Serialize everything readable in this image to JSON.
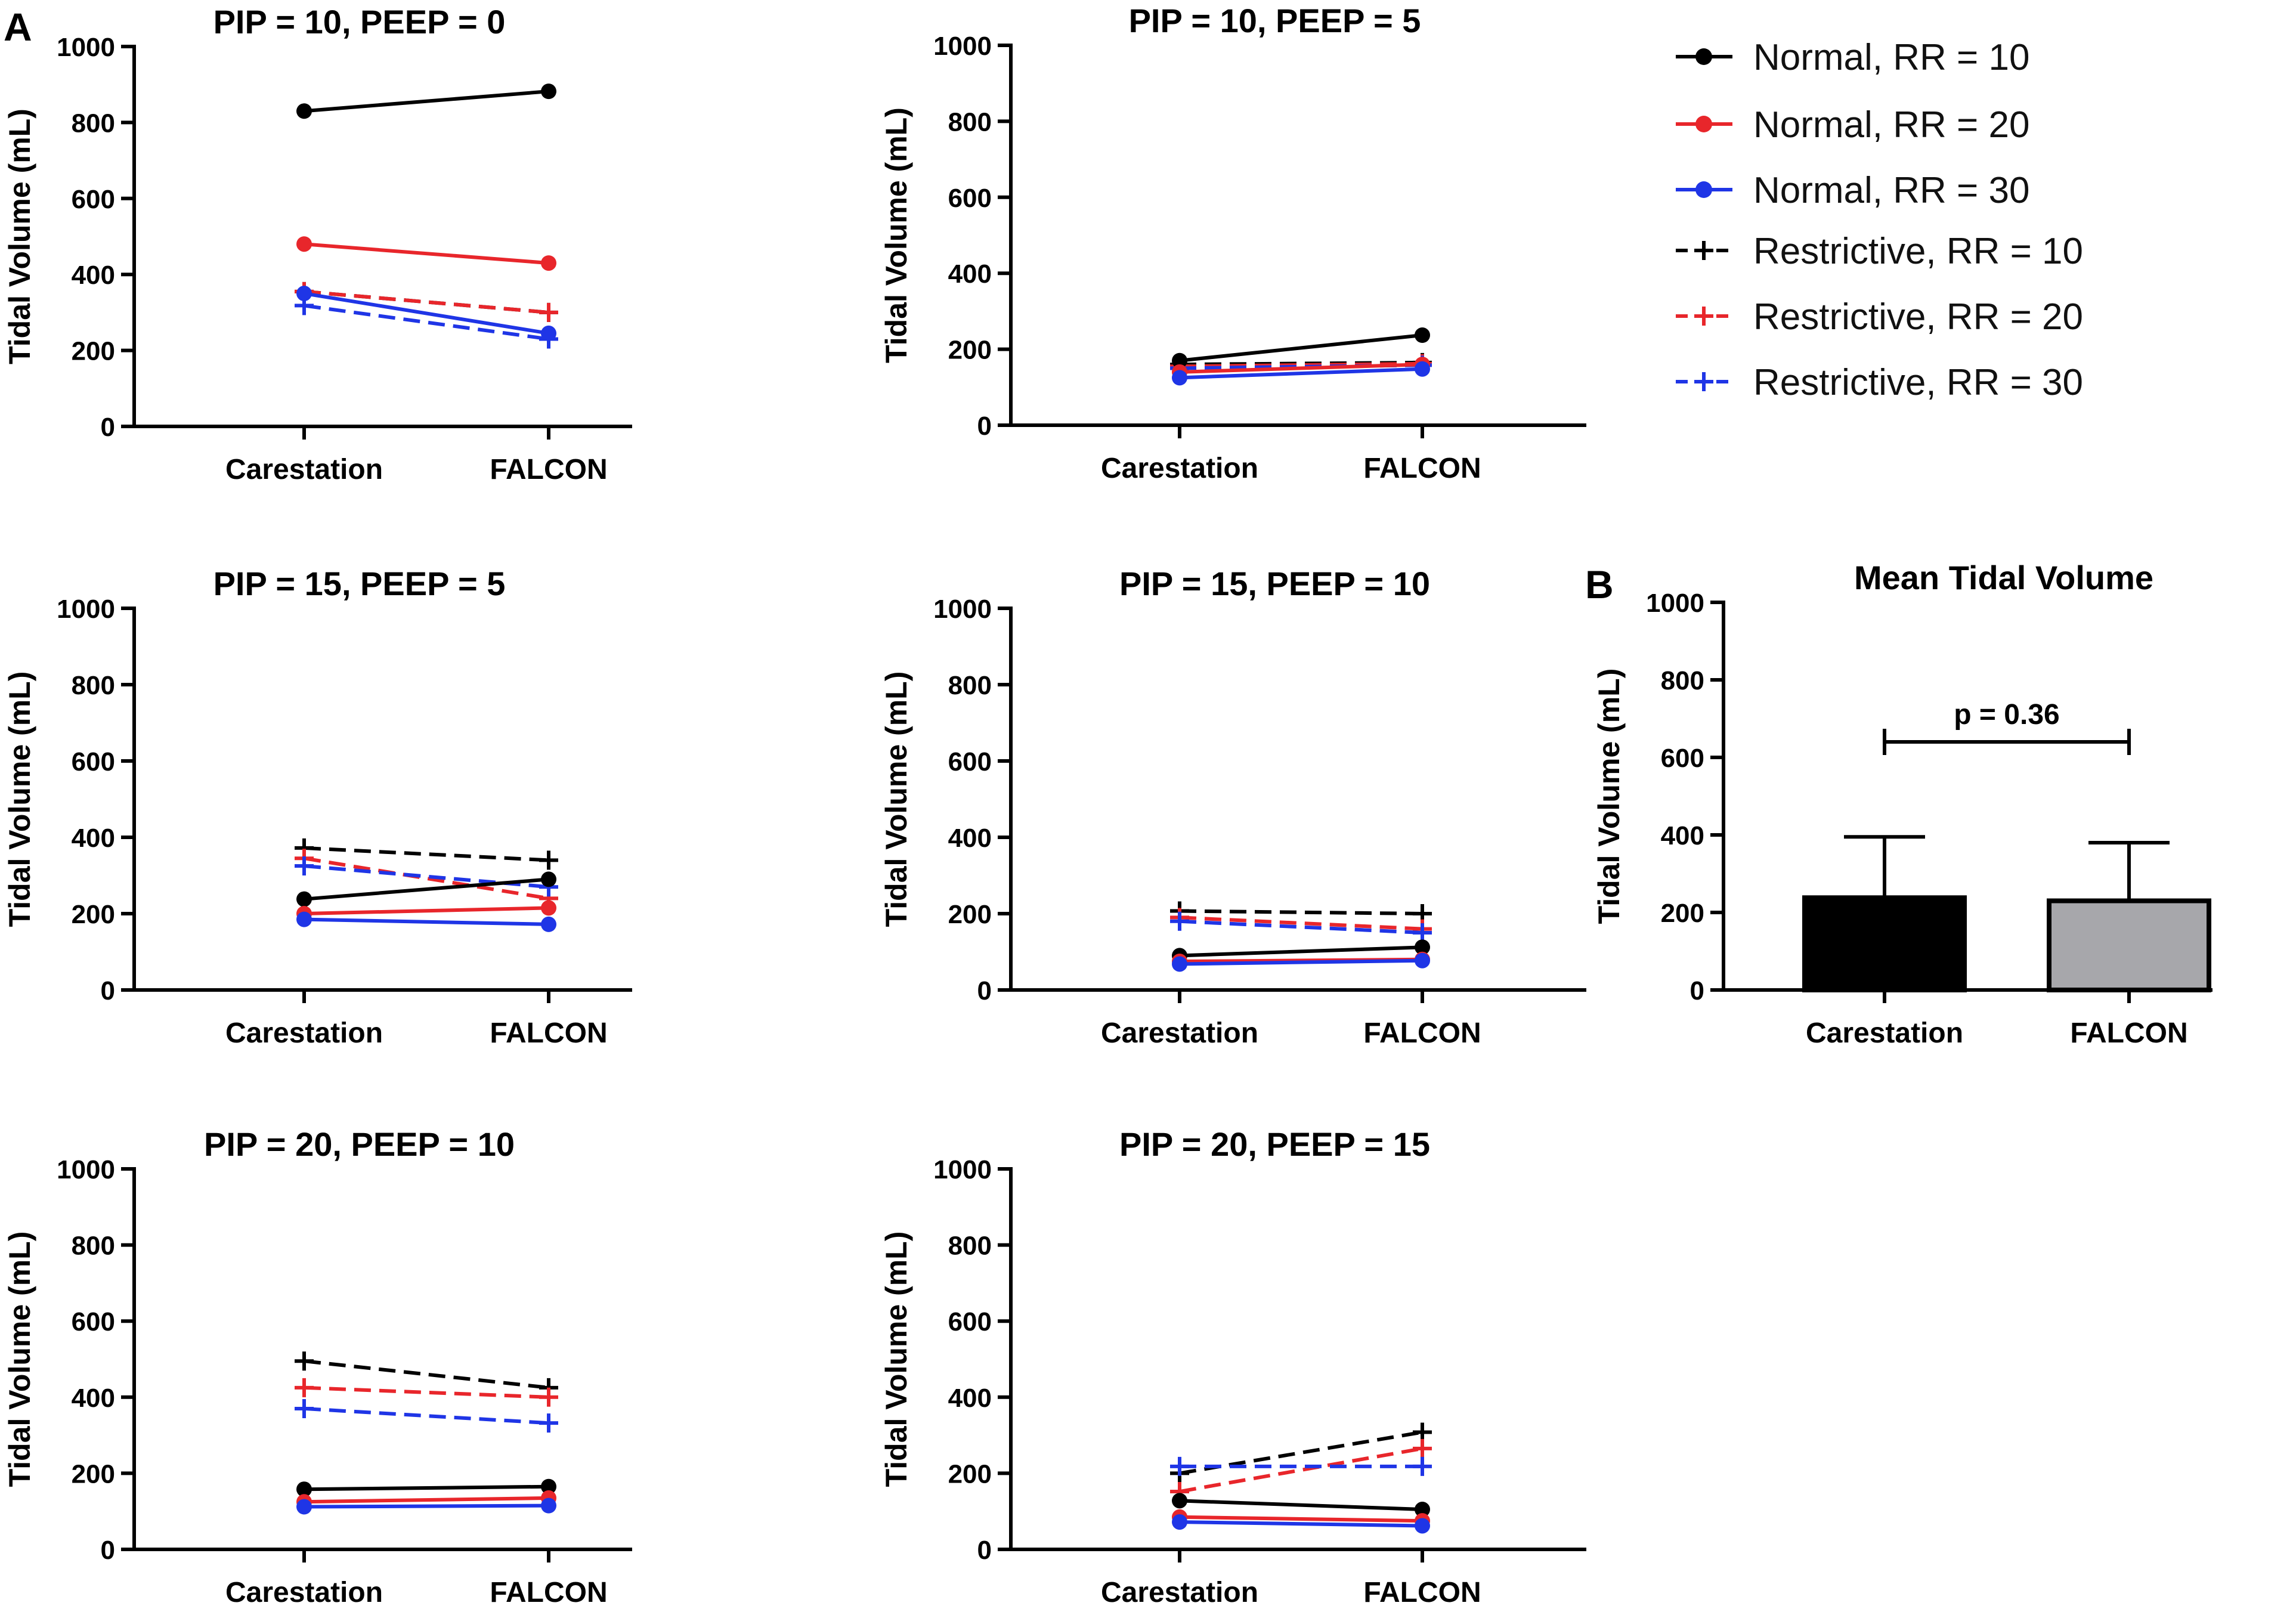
{
  "figure": {
    "panel_a_label": "A",
    "panel_b_label": "B"
  },
  "colors": {
    "normal_rr10": "#000000",
    "normal_rr20": "#e8262b",
    "normal_rr30": "#1f35e6",
    "bar_carestation": "#000000",
    "bar_falcon": "#a7a7ab"
  },
  "legend": [
    {
      "label": "Normal, RR = 10",
      "style": "solid-dot",
      "color": "#000000"
    },
    {
      "label": "Normal, RR = 20",
      "style": "solid-dot",
      "color": "#e8262b"
    },
    {
      "label": "Normal, RR = 30",
      "style": "solid-dot",
      "color": "#1f35e6"
    },
    {
      "label": "Restrictive, RR = 10",
      "style": "dashed-plus",
      "color": "#000000"
    },
    {
      "label": "Restrictive, RR = 20",
      "style": "dashed-plus",
      "color": "#e8262b"
    },
    {
      "label": "Restrictive, RR = 30",
      "style": "dashed-plus",
      "color": "#1f35e6"
    }
  ],
  "chart_data": [
    {
      "type": "line",
      "title": "PIP = 10, PEEP = 0",
      "categories": [
        "Carestation",
        "FALCON"
      ],
      "ylabel": "Tidal Volume (mL)",
      "ylim": [
        0,
        1000
      ],
      "yticks": [
        0,
        200,
        400,
        600,
        800,
        1000
      ],
      "series": [
        {
          "name": "Normal, RR = 10",
          "values": [
            830,
            882
          ]
        },
        {
          "name": "Normal, RR = 20",
          "values": [
            480,
            430
          ]
        },
        {
          "name": "Normal, RR = 30",
          "values": [
            350,
            245
          ]
        },
        {
          "name": "Restrictive, RR = 10",
          "values": [
            355,
            300
          ]
        },
        {
          "name": "Restrictive, RR = 20",
          "values": [
            355,
            300
          ]
        },
        {
          "name": "Restrictive, RR = 30",
          "values": [
            318,
            230
          ]
        }
      ]
    },
    {
      "type": "line",
      "title": "PIP = 10, PEEP = 5",
      "categories": [
        "Carestation",
        "FALCON"
      ],
      "ylabel": "Tidal Volume (mL)",
      "ylim": [
        0,
        1000
      ],
      "yticks": [
        0,
        200,
        400,
        600,
        800,
        1000
      ],
      "series": [
        {
          "name": "Normal, RR = 10",
          "values": [
            170,
            237
          ]
        },
        {
          "name": "Normal, RR = 20",
          "values": [
            140,
            160
          ]
        },
        {
          "name": "Normal, RR = 30",
          "values": [
            125,
            148
          ]
        },
        {
          "name": "Restrictive, RR = 10",
          "values": [
            160,
            165
          ]
        },
        {
          "name": "Restrictive, RR = 20",
          "values": [
            155,
            162
          ]
        },
        {
          "name": "Restrictive, RR = 30",
          "values": [
            150,
            158
          ]
        }
      ]
    },
    {
      "type": "line",
      "title": "PIP = 15, PEEP = 5",
      "categories": [
        "Carestation",
        "FALCON"
      ],
      "ylabel": "Tidal Volume (mL)",
      "ylim": [
        0,
        1000
      ],
      "yticks": [
        0,
        200,
        400,
        600,
        800,
        1000
      ],
      "series": [
        {
          "name": "Normal, RR = 10",
          "values": [
            238,
            290
          ]
        },
        {
          "name": "Normal, RR = 20",
          "values": [
            200,
            215
          ]
        },
        {
          "name": "Normal, RR = 30",
          "values": [
            185,
            172
          ]
        },
        {
          "name": "Restrictive, RR = 10",
          "values": [
            372,
            340
          ]
        },
        {
          "name": "Restrictive, RR = 20",
          "values": [
            345,
            240
          ]
        },
        {
          "name": "Restrictive, RR = 30",
          "values": [
            325,
            270
          ]
        }
      ]
    },
    {
      "type": "line",
      "title": "PIP = 15, PEEP = 10",
      "categories": [
        "Carestation",
        "FALCON"
      ],
      "ylabel": "Tidal Volume (mL)",
      "ylim": [
        0,
        1000
      ],
      "yticks": [
        0,
        200,
        400,
        600,
        800,
        1000
      ],
      "series": [
        {
          "name": "Normal, RR = 10",
          "values": [
            90,
            112
          ]
        },
        {
          "name": "Normal, RR = 20",
          "values": [
            75,
            80
          ]
        },
        {
          "name": "Normal, RR = 30",
          "values": [
            68,
            77
          ]
        },
        {
          "name": "Restrictive, RR = 10",
          "values": [
            207,
            200
          ]
        },
        {
          "name": "Restrictive, RR = 20",
          "values": [
            190,
            160
          ]
        },
        {
          "name": "Restrictive, RR = 30",
          "values": [
            180,
            150
          ]
        }
      ]
    },
    {
      "type": "line",
      "title": "PIP = 20, PEEP = 10",
      "categories": [
        "Carestation",
        "FALCON"
      ],
      "ylabel": "Tidal Volume (mL)",
      "ylim": [
        0,
        1000
      ],
      "yticks": [
        0,
        200,
        400,
        600,
        800,
        1000
      ],
      "series": [
        {
          "name": "Normal, RR = 10",
          "values": [
            158,
            165
          ]
        },
        {
          "name": "Normal, RR = 20",
          "values": [
            125,
            135
          ]
        },
        {
          "name": "Normal, RR = 30",
          "values": [
            112,
            115
          ]
        },
        {
          "name": "Restrictive, RR = 10",
          "values": [
            495,
            425
          ]
        },
        {
          "name": "Restrictive, RR = 20",
          "values": [
            425,
            400
          ]
        },
        {
          "name": "Restrictive, RR = 30",
          "values": [
            370,
            332
          ]
        }
      ]
    },
    {
      "type": "line",
      "title": "PIP = 20, PEEP = 15",
      "categories": [
        "Carestation",
        "FALCON"
      ],
      "ylabel": "Tidal Volume (mL)",
      "ylim": [
        0,
        1000
      ],
      "yticks": [
        0,
        200,
        400,
        600,
        800,
        1000
      ],
      "series": [
        {
          "name": "Normal, RR = 10",
          "values": [
            128,
            105
          ]
        },
        {
          "name": "Normal, RR = 20",
          "values": [
            85,
            75
          ]
        },
        {
          "name": "Normal, RR = 30",
          "values": [
            72,
            62
          ]
        },
        {
          "name": "Restrictive, RR = 10",
          "values": [
            200,
            308
          ]
        },
        {
          "name": "Restrictive, RR = 20",
          "values": [
            152,
            265
          ]
        },
        {
          "name": "Restrictive, RR = 30",
          "values": [
            218,
            218
          ]
        }
      ]
    },
    {
      "type": "bar",
      "title": "Mean Tidal Volume",
      "categories": [
        "Carestation",
        "FALCON"
      ],
      "values": [
        238,
        230
      ],
      "error_upper": [
        395,
        380
      ],
      "ylabel": "Tidal Volume (mL)",
      "ylim": [
        0,
        1000
      ],
      "yticks": [
        0,
        200,
        400,
        600,
        800,
        1000
      ],
      "annotation": "p = 0.36",
      "annotation_level": 640
    }
  ]
}
